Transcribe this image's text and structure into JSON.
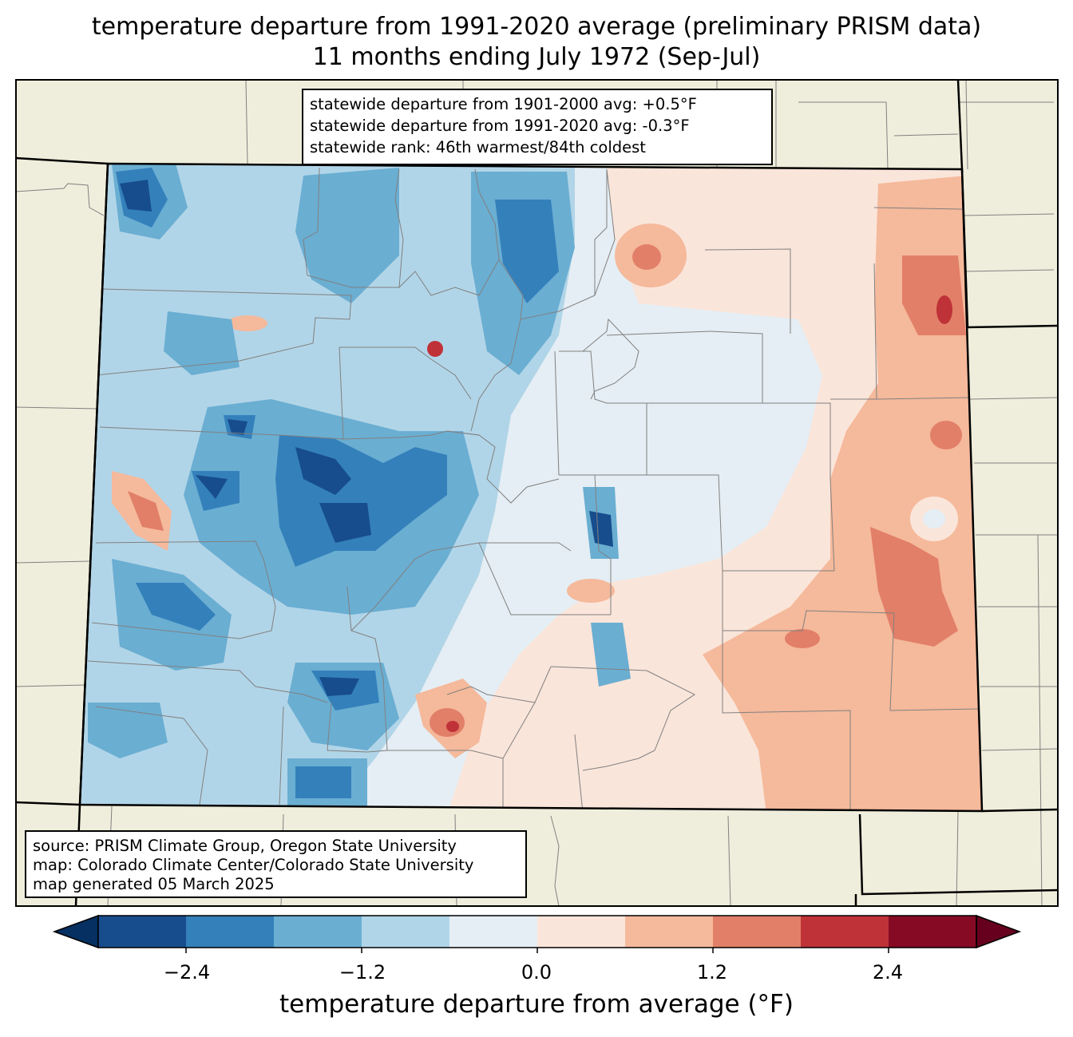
{
  "title_line1": "temperature departure from 1991-2020 average (preliminary PRISM data)",
  "title_line2": "11 months ending July 1972 (Sep-Jul)",
  "stats": {
    "line1": "statewide departure from 1901-2000 avg: +0.5°F",
    "line2": "statewide departure from 1991-2020 avg: -0.3°F",
    "line3": "statewide rank: 46th warmest/84th coldest"
  },
  "source": {
    "line1": "source: PRISM Climate Group, Oregon State University",
    "line2": "map: Colorado Climate Center/Colorado State University",
    "line3": "map generated 05 March 2025"
  },
  "colorbar": {
    "label": "temperature departure from average (°F)",
    "ticks": [
      "−2.4",
      "−1.2",
      "0.0",
      "1.2",
      "2.4"
    ],
    "bins": [
      -3.0,
      -2.4,
      -1.8,
      -1.2,
      -0.6,
      0.0,
      0.6,
      1.2,
      1.8,
      2.4,
      3.0
    ],
    "colors": [
      "#053061",
      "#174d8c",
      "#3480bb",
      "#6aaed2",
      "#b1d5e8",
      "#e5eef4",
      "#fae5da",
      "#f5b99b",
      "#e27f68",
      "#bf3238",
      "#870a24",
      "#67001f"
    ]
  },
  "colors": {
    "land": "#efeedc",
    "border": "#000000",
    "county": "#808080"
  }
}
